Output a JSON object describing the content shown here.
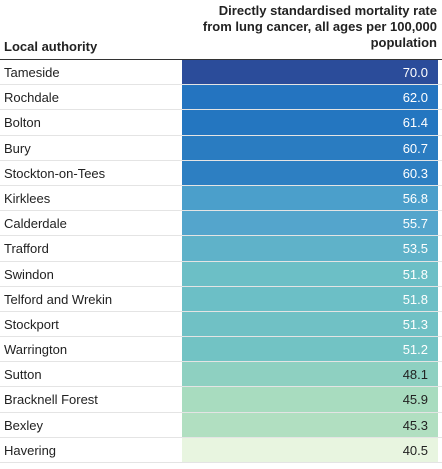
{
  "chart_data": {
    "type": "table",
    "columns": [
      "Local authority",
      "Directly standardised mortality rate from lung cancer, all ages per 100,000 population"
    ],
    "rows": [
      {
        "authority": "Tameside",
        "value": "70.0",
        "color": "#2b4c9a"
      },
      {
        "authority": "Rochdale",
        "value": "62.0",
        "color": "#2474c0"
      },
      {
        "authority": "Bolton",
        "value": "61.4",
        "color": "#2476c0"
      },
      {
        "authority": "Bury",
        "value": "60.7",
        "color": "#2a7cc1"
      },
      {
        "authority": "Stockton-on-Tees",
        "value": "60.3",
        "color": "#2d7fc2"
      },
      {
        "authority": "Kirklees",
        "value": "56.8",
        "color": "#4b9fcb"
      },
      {
        "authority": "Calderdale",
        "value": "55.7",
        "color": "#54a5cc"
      },
      {
        "authority": "Trafford",
        "value": "53.5",
        "color": "#5fb2c9"
      },
      {
        "authority": "Swindon",
        "value": "51.8",
        "color": "#6cbfc6"
      },
      {
        "authority": "Telford and Wrekin",
        "value": "51.8",
        "color": "#6cbfc6"
      },
      {
        "authority": "Stockport",
        "value": "51.3",
        "color": "#70c1c5"
      },
      {
        "authority": "Warrington",
        "value": "51.2",
        "color": "#72c3c4"
      },
      {
        "authority": "Sutton",
        "value": "48.1",
        "color": "#8ed0c1"
      },
      {
        "authority": "Bracknell Forest",
        "value": "45.9",
        "color": "#a8dcbf"
      },
      {
        "authority": "Bexley",
        "value": "45.3",
        "color": "#b1dfc1"
      },
      {
        "authority": "Havering",
        "value": "40.5",
        "color": "#e8f5e0"
      }
    ]
  }
}
